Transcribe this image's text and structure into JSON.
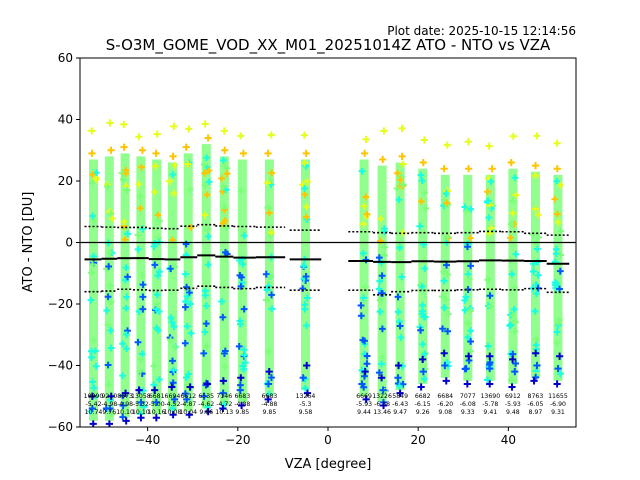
{
  "chart_data": {
    "type": "scatter",
    "plot_date": "Plot date: 2025-10-15 12:14:56",
    "title": "S-O3M_GOME_VOD_XX_M01_20251014Z ATO - NTO vs VZA",
    "xlabel": "VZA [degree]",
    "ylabel": "ATO - NTO [DU]",
    "xlim": [
      -55,
      55
    ],
    "ylim": [
      -60,
      60
    ],
    "xticks": [
      -40,
      -20,
      0,
      20,
      40
    ],
    "yticks": [
      -60,
      -40,
      -20,
      0,
      20,
      40,
      60
    ],
    "zero_line": 0,
    "bins": [
      {
        "x": -52,
        "mean": -5.5,
        "sd_hi": 5.2,
        "sd_lo": -16.0,
        "top": 27,
        "bottom": -58,
        "n": "10090",
        "m": "-5.42",
        "s": "10.74"
      },
      {
        "x": -48.5,
        "mean": -5.3,
        "sd_hi": 5.0,
        "sd_lo": -15.8,
        "top": 28,
        "bottom": -58,
        "n": "9210",
        "m": "-4.98",
        "s": "9.76"
      },
      {
        "x": -45,
        "mean": -5.1,
        "sd_hi": 4.9,
        "sd_lo": -15.2,
        "top": 29,
        "bottom": -57,
        "n": "8673",
        "m": "-4.98",
        "s": "10.10"
      },
      {
        "x": -41.5,
        "mean": -5.1,
        "sd_hi": 4.9,
        "sd_lo": -15.4,
        "top": 28,
        "bottom": -56,
        "n": "13058",
        "m": "-5.32",
        "s": "10.10"
      },
      {
        "x": -38,
        "mean": -5.4,
        "sd_hi": 4.6,
        "sd_lo": -15.6,
        "top": 27,
        "bottom": -56,
        "n": "6681",
        "m": "-5.00",
        "s": "10.16"
      },
      {
        "x": -34.5,
        "mean": -5.5,
        "sd_hi": 4.5,
        "sd_lo": -15.5,
        "top": 26,
        "bottom": -55,
        "n": "6694",
        "m": "-4.52",
        "s": "10.08"
      },
      {
        "x": -31,
        "mean": -4.8,
        "sd_hi": 5.3,
        "sd_lo": -14.9,
        "top": 29,
        "bottom": -55,
        "n": "6612",
        "m": "-4.87",
        "s": "10.04"
      },
      {
        "x": -27,
        "mean": -4.2,
        "sd_hi": 5.8,
        "sd_lo": -14.2,
        "top": 32,
        "bottom": -54,
        "n": "6535",
        "m": "-4.62",
        "s": "9.86"
      },
      {
        "x": -23,
        "mean": -4.6,
        "sd_hi": 5.4,
        "sd_lo": -14.6,
        "top": 28,
        "bottom": -53,
        "n": "7146",
        "m": "-4.72",
        "s": "10.13"
      },
      {
        "x": -19,
        "mean": -4.9,
        "sd_hi": 5.2,
        "sd_lo": -15.0,
        "top": 27,
        "bottom": -52,
        "n": "6683",
        "m": "-4.88",
        "s": "9.85"
      },
      {
        "x": -13,
        "mean": -4.8,
        "sd_hi": 5.0,
        "sd_lo": -14.6,
        "top": 27,
        "bottom": -50,
        "n": "6683",
        "m": "-4.88",
        "s": "9.85"
      },
      {
        "x": -5,
        "mean": -5.5,
        "sd_hi": 4.0,
        "sd_lo": -15.5,
        "top": 27,
        "bottom": -48,
        "n": "13264",
        "m": "-5.3",
        "s": "9.58"
      },
      {
        "x": 8,
        "mean": -6.0,
        "sd_hi": 3.5,
        "sd_lo": -15.5,
        "top": 27,
        "bottom": -50,
        "n": "6669",
        "m": "-5.93",
        "s": "9.44"
      },
      {
        "x": 12,
        "mean": -6.3,
        "sd_hi": 3.2,
        "sd_lo": -17.0,
        "top": 25,
        "bottom": -52,
        "n": "13226",
        "m": "-6.38",
        "s": "13.46"
      },
      {
        "x": 16,
        "mean": -6.4,
        "sd_hi": 3.0,
        "sd_lo": -16.0,
        "top": 26,
        "bottom": -48,
        "n": "5849",
        "m": "-6.43",
        "s": "9.47"
      },
      {
        "x": 21,
        "mean": -6.1,
        "sd_hi": 3.2,
        "sd_lo": -15.6,
        "top": 24,
        "bottom": -46,
        "n": "6682",
        "m": "-6.15",
        "s": "9.26"
      },
      {
        "x": 26,
        "mean": -6.2,
        "sd_hi": 3.0,
        "sd_lo": -15.6,
        "top": 22,
        "bottom": -44,
        "n": "6684",
        "m": "-6.20",
        "s": "9.08"
      },
      {
        "x": 31,
        "mean": -6.1,
        "sd_hi": 3.2,
        "sd_lo": -15.4,
        "top": 22,
        "bottom": -45,
        "n": "7077",
        "m": "-6.08",
        "s": "9.33"
      },
      {
        "x": 36,
        "mean": -5.8,
        "sd_hi": 3.6,
        "sd_lo": -15.2,
        "top": 22,
        "bottom": -45,
        "n": "13690",
        "m": "-5.78",
        "s": "9.41"
      },
      {
        "x": 41,
        "mean": -5.9,
        "sd_hi": 3.5,
        "sd_lo": -15.4,
        "top": 24,
        "bottom": -46,
        "n": "6912",
        "m": "-5.93",
        "s": "9.48"
      },
      {
        "x": 46,
        "mean": -6.0,
        "sd_hi": 3.0,
        "sd_lo": -15.0,
        "top": 23,
        "bottom": -44,
        "n": "8763",
        "m": "-6.05",
        "s": "8.97"
      },
      {
        "x": 51,
        "mean": -6.9,
        "sd_hi": 2.4,
        "sd_lo": -16.2,
        "top": 22,
        "bottom": -45,
        "n": "11655",
        "m": "-6.90",
        "s": "9.31"
      }
    ],
    "colors": {
      "core": "#7cff79",
      "cyan": "#16ffe1",
      "yellow": "#e5ff1a",
      "orange": "#ffc400",
      "blue": "#0059ff",
      "navy": "#0000cd",
      "line": "#000000"
    }
  }
}
